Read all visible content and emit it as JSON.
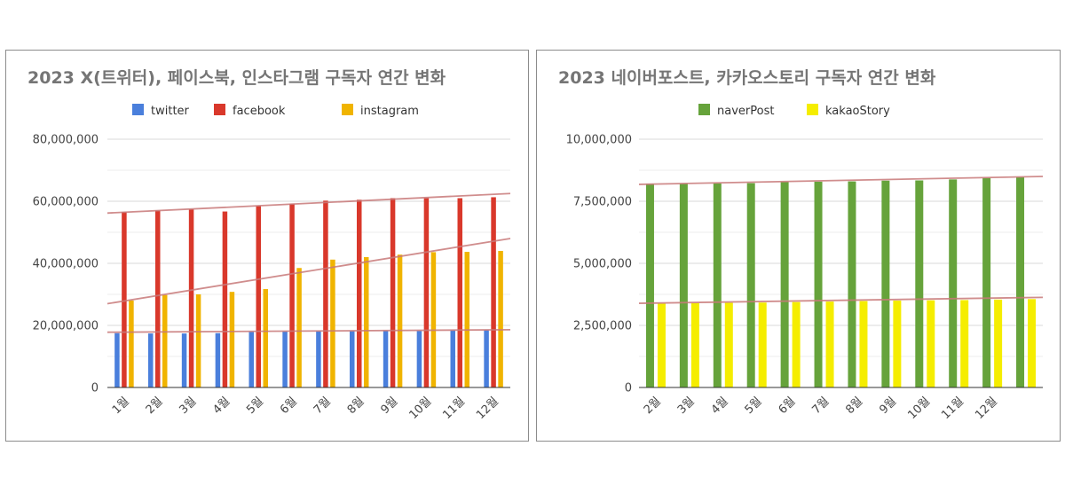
{
  "chart_data": [
    {
      "type": "bar",
      "title": "2023 X(트위터), 페이스북, 인스타그램 구독자 연간 변화",
      "legend_position": "top",
      "categories": [
        "1월",
        "2월",
        "3월",
        "4월",
        "5월",
        "6월",
        "7월",
        "8월",
        "9월",
        "10월",
        "11월",
        "12월"
      ],
      "y_ticks": [
        "0",
        "20,000,000",
        "40,000,000",
        "60,000,000",
        "80,000,000"
      ],
      "ylim": [
        0,
        80000000
      ],
      "grid": true,
      "trendlines": true,
      "series": [
        {
          "name": "twitter",
          "color": "#4a7fdc",
          "values": [
            17500000,
            17400000,
            17400000,
            17500000,
            17900000,
            18000000,
            18100000,
            18200000,
            18300000,
            18200000,
            18400000,
            18500000
          ],
          "trend": [
            17800000,
            18600000
          ]
        },
        {
          "name": "facebook",
          "color": "#d9382b",
          "values": [
            56500000,
            57000000,
            57400000,
            56700000,
            58500000,
            59200000,
            60200000,
            60500000,
            61000000,
            61000000,
            61000000,
            61300000
          ],
          "trend": [
            56200000,
            62500000
          ]
        },
        {
          "name": "instagram",
          "color": "#f0b400",
          "values": [
            28000000,
            29800000,
            30000000,
            30800000,
            31700000,
            38500000,
            41200000,
            42000000,
            42800000,
            43600000,
            43700000,
            44000000
          ],
          "trend": [
            27000000,
            48000000
          ]
        }
      ]
    },
    {
      "type": "bar",
      "title": "2023 네이버포스트, 카카오스토리 구독자 연간 변화",
      "legend_position": "top",
      "categories": [
        "2월",
        "3월",
        "4월",
        "5월",
        "6월",
        "7월",
        "8월",
        "9월",
        "10월",
        "11월",
        "12월",
        ""
      ],
      "y_ticks": [
        "0",
        "2,500,000",
        "5,000,000",
        "7,500,000",
        "10,000,000"
      ],
      "ylim": [
        0,
        10000000
      ],
      "grid": true,
      "trendlines": true,
      "series": [
        {
          "name": "naverPost",
          "color": "#66a33b",
          "values": [
            8200000,
            8210000,
            8220000,
            8230000,
            8280000,
            8290000,
            8300000,
            8330000,
            8340000,
            8380000,
            8440000,
            8470000
          ],
          "trend": [
            8180000,
            8500000
          ]
        },
        {
          "name": "kakaoStory",
          "color": "#f5ed00",
          "values": [
            3380000,
            3400000,
            3410000,
            3420000,
            3440000,
            3460000,
            3480000,
            3500000,
            3510000,
            3520000,
            3540000,
            3560000
          ],
          "trend": [
            3390000,
            3630000
          ]
        }
      ]
    }
  ]
}
